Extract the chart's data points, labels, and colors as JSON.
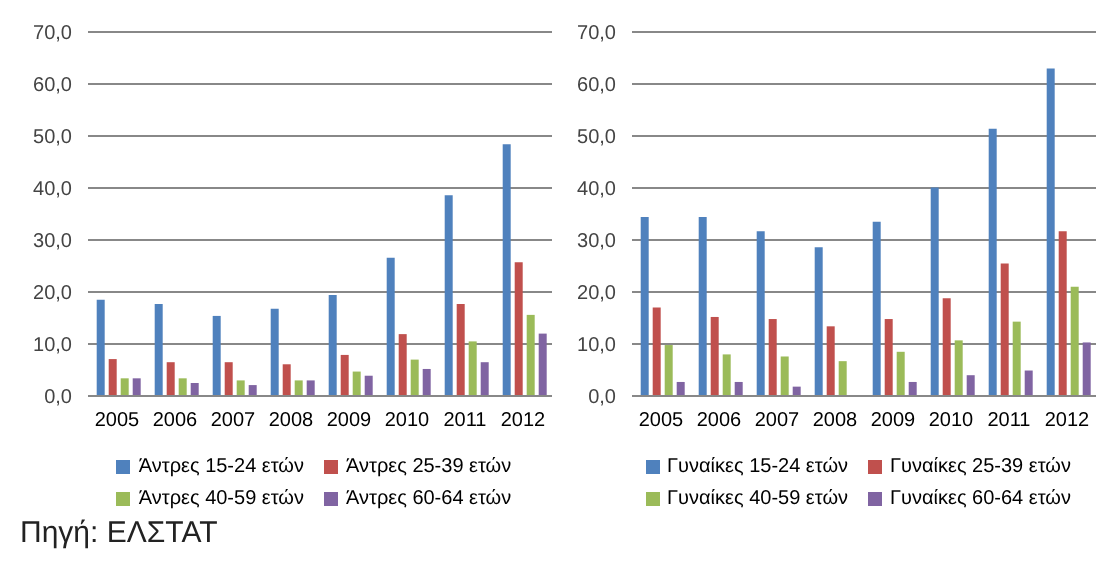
{
  "chart_data": [
    {
      "type": "bar",
      "categories": [
        "2005",
        "2006",
        "2007",
        "2008",
        "2009",
        "2010",
        "2011",
        "2012"
      ],
      "series": [
        {
          "name": "Άντρες 15-24 ετών",
          "color": "#4f81bd",
          "values": [
            18.5,
            17.7,
            15.4,
            16.8,
            19.4,
            26.6,
            38.6,
            48.4
          ]
        },
        {
          "name": "Άντρες 25-39 ετών",
          "color": "#c0504d",
          "values": [
            7.1,
            6.5,
            6.5,
            6.1,
            7.9,
            11.9,
            17.7,
            25.7
          ]
        },
        {
          "name": "Άντρες 40-59 ετών",
          "color": "#9bbb59",
          "values": [
            3.4,
            3.4,
            3.0,
            3.0,
            4.7,
            7.0,
            10.5,
            15.6
          ]
        },
        {
          "name": "Άντρες 60-64 ετών",
          "color": "#8064a2",
          "values": [
            3.4,
            2.5,
            2.1,
            3.0,
            3.9,
            5.2,
            6.5,
            12.0
          ]
        }
      ],
      "ylim": [
        0,
        70
      ],
      "yticks": [
        {
          "value": 0,
          "label": "0,0"
        },
        {
          "value": 10,
          "label": "10,0"
        },
        {
          "value": 20,
          "label": "20,0"
        },
        {
          "value": 30,
          "label": "30,0"
        },
        {
          "value": 40,
          "label": "40,0"
        },
        {
          "value": 50,
          "label": "50,0"
        },
        {
          "value": 60,
          "label": "60,0"
        },
        {
          "value": 70,
          "label": "70,0"
        }
      ],
      "grid": "y",
      "legend": "bottom",
      "annotations": [
        "Πηγή: ΕΛΣΤΑΤ"
      ]
    },
    {
      "type": "bar",
      "categories": [
        "2005",
        "2006",
        "2007",
        "2008",
        "2009",
        "2010",
        "2011",
        "2012"
      ],
      "series": [
        {
          "name": "Γυναίκες 15-24 ετών",
          "color": "#4f81bd",
          "values": [
            34.4,
            34.4,
            31.7,
            28.6,
            33.5,
            40.1,
            51.4,
            63.0
          ]
        },
        {
          "name": "Γυναίκες 25-39 ετών",
          "color": "#c0504d",
          "values": [
            17.0,
            15.2,
            14.8,
            13.4,
            14.8,
            18.8,
            25.5,
            31.7
          ]
        },
        {
          "name": "Γυναίκες 40-59 ετών",
          "color": "#9bbb59",
          "values": [
            9.8,
            8.0,
            7.6,
            6.7,
            8.5,
            10.7,
            14.3,
            21.0
          ]
        },
        {
          "name": "Γυναίκες 60-64 ετών",
          "color": "#8064a2",
          "values": [
            2.7,
            2.7,
            1.8,
            null,
            2.7,
            4.0,
            4.9,
            10.3
          ]
        }
      ],
      "ylim": [
        0,
        70
      ],
      "yticks": [
        {
          "value": 0,
          "label": "0,0"
        },
        {
          "value": 10,
          "label": "10,0"
        },
        {
          "value": 20,
          "label": "20,0"
        },
        {
          "value": 30,
          "label": "30,0"
        },
        {
          "value": 40,
          "label": "40,0"
        },
        {
          "value": 50,
          "label": "50,0"
        },
        {
          "value": 60,
          "label": "60,0"
        },
        {
          "value": 70,
          "label": "70,0"
        }
      ],
      "grid": "y",
      "legend": "bottom"
    }
  ]
}
